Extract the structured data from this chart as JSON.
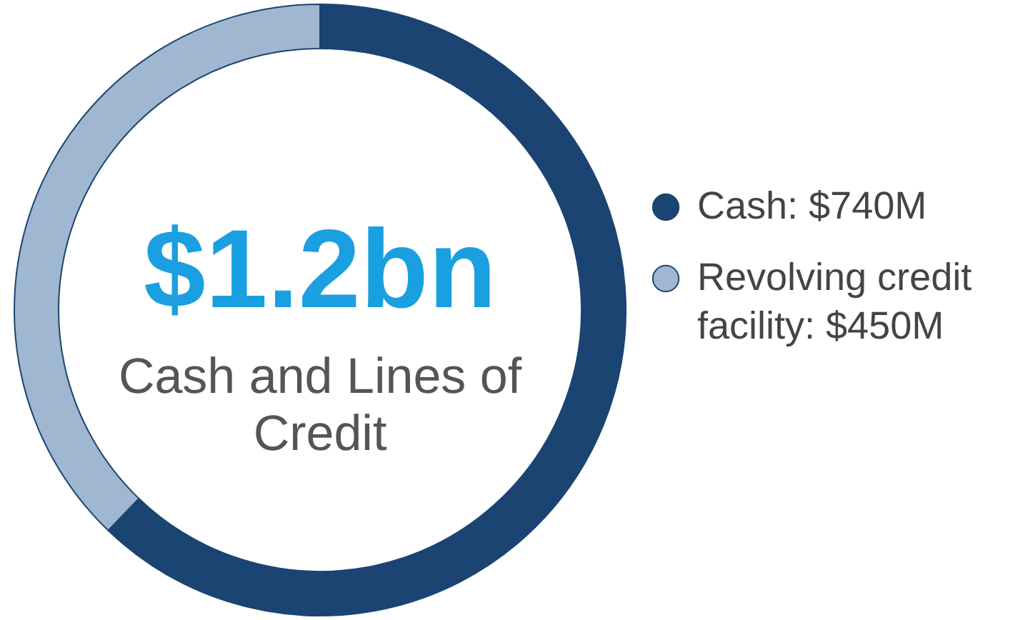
{
  "chart_data": {
    "type": "donut",
    "categories": [
      "Cash: $740M",
      "Revolving credit facility: $450M"
    ],
    "values": [
      740,
      450
    ],
    "colors": [
      "#1b4472",
      "#a0b7d1"
    ],
    "legend": "right",
    "annotations": [
      "$1.2bn",
      "Cash and Lines of Credit"
    ]
  }
}
